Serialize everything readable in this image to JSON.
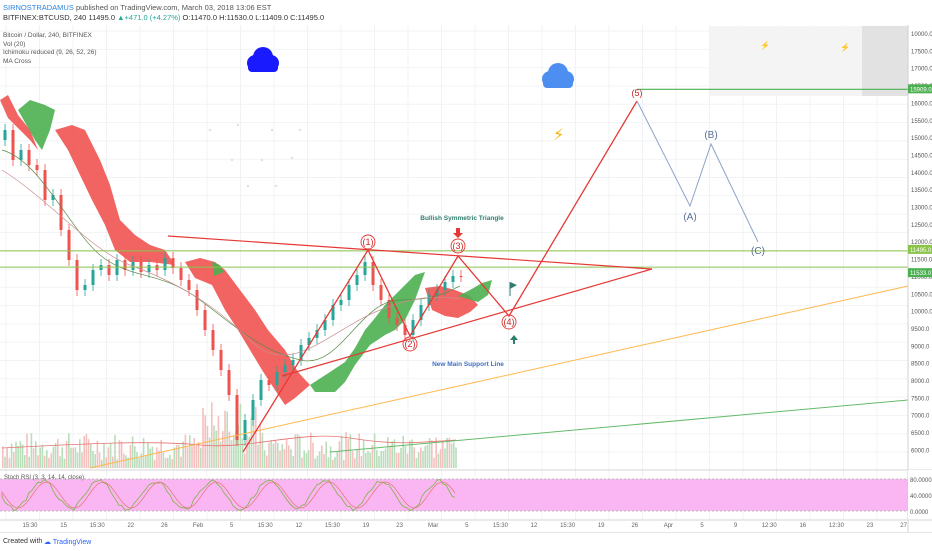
{
  "header": {
    "author": "SIRNOSTRADAMUS",
    "published_text": "published on TradingView.com, March 03, 2018 13:06 EST",
    "symbol_line": "BITFINEX:BTCUSD, 240",
    "last": "11495.0",
    "change": "+471.0 (+4.27%)",
    "ohlc": "O:11470.0 H:11530.0 L:11409.0 C:11495.0"
  },
  "legend": [
    "Bitcoin / Dollar, 240, BITFINEX",
    "Vol (20)",
    "Ichimoku reduced (9, 26, 52, 26)",
    "MA Cross"
  ],
  "rsi_label": "Stoch RSI (3, 3, 14, 14, close)",
  "footer": {
    "created_with": "Created with",
    "brand": "TradingView"
  },
  "colors": {
    "cloud_bull": "#4caf50",
    "cloud_bear": "#ef5350",
    "drawing_red": "#e53935",
    "support_orange": "#ffb74d",
    "support_green": "#66bb6a",
    "price_band": "#8bc34a",
    "target_line": "#4caf50",
    "cloud_icon_dark": "#1a1aff",
    "cloud_icon_light": "#4d8ff0",
    "lightning": "#f5b301",
    "stoch_band": "#f9a9f0",
    "annotation_teal": "#2e7d6e",
    "annotation_blue": "#3f6fbf"
  },
  "chart_data": {
    "type": "line",
    "y_axis_right": [
      "10000.0",
      "17500.0",
      "17000.0",
      "16500.0",
      "16000.0",
      "15500.0",
      "15000.0",
      "14500.0",
      "14000.0",
      "13500.0",
      "13000.0",
      "12500.0",
      "12000.0",
      "11500.0",
      "11000.0",
      "10500.0",
      "10000.0",
      "9500.0",
      "9000.0",
      "8500.0",
      "8000.0",
      "7500.0",
      "7000.0",
      "6500.0",
      "6000.0"
    ],
    "price_labels": [
      "15909.0",
      "11495.0",
      "11533.0"
    ],
    "x_ticks": [
      "15:30",
      "15",
      "15:30",
      "22",
      "26",
      "Feb",
      "5",
      "15:30",
      "12",
      "15:30",
      "19",
      "23",
      "Mar",
      "5",
      "15:30",
      "12",
      "15:30",
      "19",
      "26",
      "Apr",
      "5",
      "9",
      "12:30",
      "16",
      "12:30",
      "23",
      "27"
    ],
    "elliott_wave": [
      {
        "label": "(1)",
        "price": 11800
      },
      {
        "label": "(2)",
        "price": 9200
      },
      {
        "label": "(3)",
        "price": 11700
      },
      {
        "label": "(4)",
        "price": 10100
      },
      {
        "label": "(5)",
        "price": 15900
      }
    ],
    "corrective_wave": [
      {
        "label": "(A)",
        "price": 13400
      },
      {
        "label": "(B)",
        "price": 14900
      },
      {
        "label": "(C)",
        "price": 12100
      }
    ],
    "stoch_levels": [
      "80.0000",
      "40.0000",
      "0.0000"
    ],
    "annotations": [
      "Bullish Symmetric Triangle",
      "New Main Support Line"
    ]
  }
}
